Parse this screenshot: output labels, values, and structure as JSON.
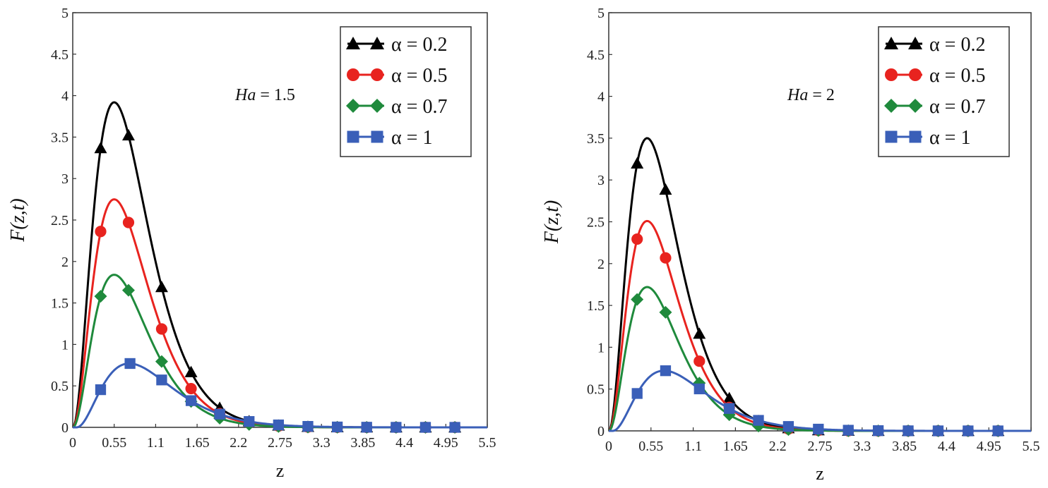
{
  "chart_data": [
    {
      "type": "line",
      "annotation_var": "Ha",
      "annotation_eq": " = 1.5",
      "xlabel": "z",
      "ylabel": "F(z,t)",
      "xlim": [
        0,
        5.5
      ],
      "ylim": [
        0,
        5
      ],
      "xticks": [
        "0",
        "0.55",
        "1.1",
        "1.65",
        "2.2",
        "2.75",
        "3.3",
        "3.85",
        "4.4",
        "4.95",
        "5.5"
      ],
      "yticks": [
        "0",
        "0.5",
        "1",
        "1.5",
        "2",
        "2.5",
        "3",
        "3.5",
        "4",
        "4.5",
        "5"
      ],
      "series": [
        {
          "name": "α = 0.2",
          "color": "#000000",
          "marker": "triangle",
          "amp": 3.92,
          "peak": 0.55,
          "markers_x": [
            0.37,
            0.74,
            1.18,
            1.57,
            1.95,
            2.34,
            2.73,
            3.12,
            3.51,
            3.9,
            4.29,
            4.68,
            5.07
          ]
        },
        {
          "name": "α = 0.5",
          "color": "#e8231f",
          "marker": "circle",
          "amp": 2.75,
          "peak": 0.55,
          "markers_x": [
            0.37,
            0.74,
            1.18,
            1.57,
            1.95,
            2.34,
            2.73,
            3.12,
            3.51,
            3.9,
            4.29,
            4.68,
            5.07
          ]
        },
        {
          "name": "α = 0.7",
          "color": "#1f8a3c",
          "marker": "diamond",
          "amp": 1.84,
          "peak": 0.55,
          "markers_x": [
            0.37,
            0.74,
            1.18,
            1.57,
            1.95,
            2.34,
            2.73,
            3.12,
            3.51,
            3.9,
            4.29,
            4.68,
            5.07
          ]
        },
        {
          "name": "α = 1",
          "color": "#3a5fb8",
          "marker": "square",
          "amp": 0.77,
          "peak": 0.75,
          "markers_x": [
            0.37,
            0.76,
            1.18,
            1.57,
            1.95,
            2.34,
            2.73,
            3.12,
            3.51,
            3.9,
            4.29,
            4.68,
            5.07
          ]
        }
      ]
    },
    {
      "type": "line",
      "annotation_var": "Ha",
      "annotation_eq": " = 2",
      "xlabel": "z",
      "ylabel": "F(z,t)",
      "xlim": [
        0,
        5.5
      ],
      "ylim": [
        0,
        5
      ],
      "xticks": [
        "0",
        "0.55",
        "1.1",
        "1.65",
        "2.2",
        "2.75",
        "3.3",
        "3.85",
        "4.4",
        "4.95",
        "5.5"
      ],
      "yticks": [
        "0",
        "0.5",
        "1",
        "1.5",
        "2",
        "2.5",
        "3",
        "3.5",
        "4",
        "4.5",
        "5"
      ],
      "series": [
        {
          "name": "α = 0.2",
          "color": "#000000",
          "marker": "triangle",
          "amp": 3.5,
          "peak": 0.5,
          "markers_x": [
            0.37,
            0.74,
            1.18,
            1.57,
            1.95,
            2.34,
            2.73,
            3.12,
            3.51,
            3.9,
            4.29,
            4.68,
            5.07
          ]
        },
        {
          "name": "α = 0.5",
          "color": "#e8231f",
          "marker": "circle",
          "amp": 2.51,
          "peak": 0.5,
          "markers_x": [
            0.37,
            0.74,
            1.18,
            1.57,
            1.95,
            2.34,
            2.73,
            3.12,
            3.51,
            3.9,
            4.29,
            4.68,
            5.07
          ]
        },
        {
          "name": "α = 0.7",
          "color": "#1f8a3c",
          "marker": "diamond",
          "amp": 1.72,
          "peak": 0.5,
          "markers_x": [
            0.37,
            0.74,
            1.18,
            1.57,
            1.95,
            2.34,
            2.73,
            3.12,
            3.51,
            3.9,
            4.29,
            4.68,
            5.07
          ]
        },
        {
          "name": "α = 1",
          "color": "#3a5fb8",
          "marker": "square",
          "amp": 0.72,
          "peak": 0.72,
          "markers_x": [
            0.37,
            0.74,
            1.18,
            1.57,
            1.95,
            2.34,
            2.73,
            3.12,
            3.51,
            3.9,
            4.29,
            4.68,
            5.07
          ]
        }
      ]
    }
  ]
}
